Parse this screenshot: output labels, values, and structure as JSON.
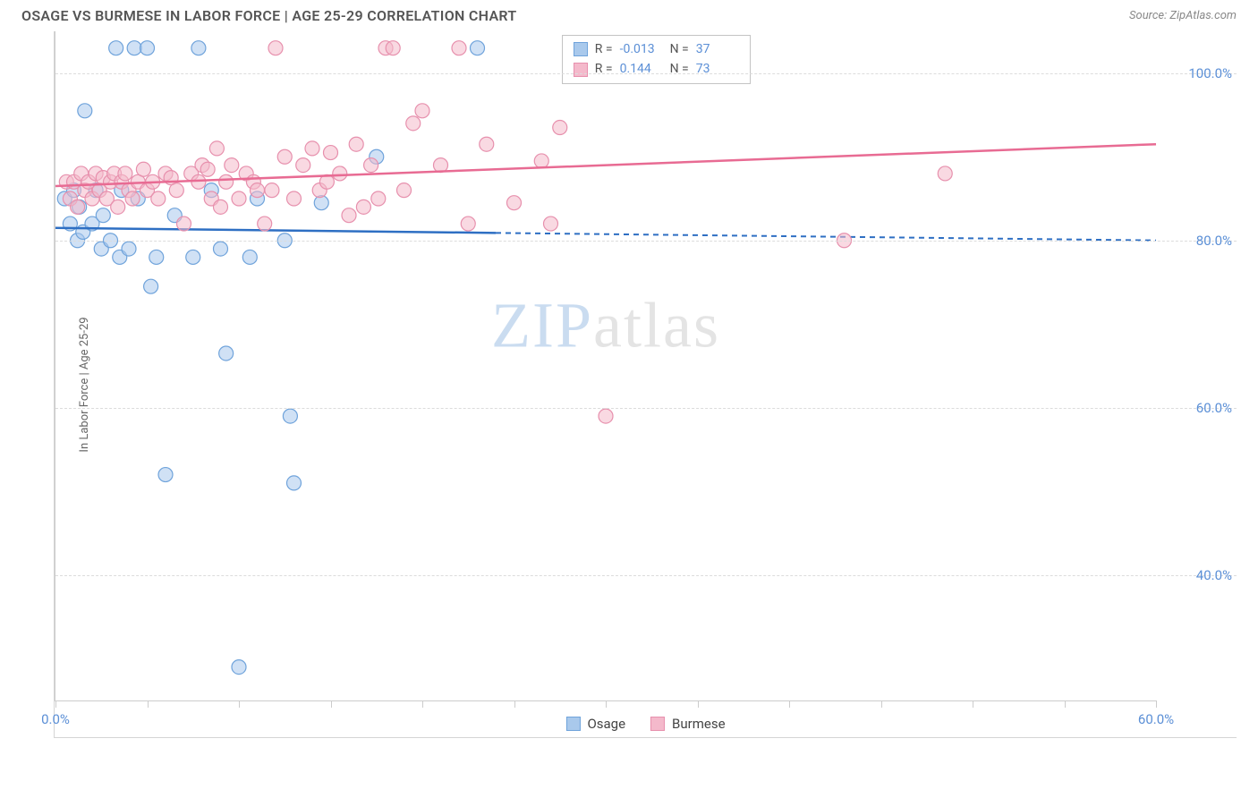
{
  "header": {
    "title": "OSAGE VS BURMESE IN LABOR FORCE | AGE 25-29 CORRELATION CHART",
    "source": "Source: ZipAtlas.com"
  },
  "watermark": {
    "left": "ZIP",
    "right": "atlas"
  },
  "chart": {
    "type": "scatter-with-regression",
    "ylabel": "In Labor Force | Age 25-29",
    "xlim": [
      0,
      60
    ],
    "ylim": [
      25,
      105
    ],
    "xtick_step": 5,
    "xtick_labels_at": [
      0,
      60
    ],
    "xtick_format": "%.1f%%",
    "ytick_values": [
      40,
      60,
      80,
      100
    ],
    "ytick_format": "%.1f%%",
    "background_color": "#ffffff",
    "grid_color": "#dcdcdc",
    "marker_radius": 8,
    "marker_opacity": 0.55,
    "line_width": 2.5,
    "series": [
      {
        "key": "osage",
        "label": "Osage",
        "color_fill": "#a9c9ec",
        "color_stroke": "#6fa3db",
        "color_line": "#2e6fc3",
        "r": "-0.013",
        "n": "37",
        "reg_start": [
          0,
          81.5
        ],
        "reg_end": [
          60,
          80.0
        ],
        "reg_solid_until": 24,
        "points": [
          [
            0.5,
            85
          ],
          [
            0.8,
            82
          ],
          [
            1.0,
            86
          ],
          [
            1.2,
            80
          ],
          [
            1.3,
            84
          ],
          [
            1.5,
            81
          ],
          [
            1.6,
            95.5
          ],
          [
            2.0,
            82
          ],
          [
            2.2,
            86
          ],
          [
            2.5,
            79
          ],
          [
            2.6,
            83
          ],
          [
            3.0,
            80
          ],
          [
            3.3,
            103
          ],
          [
            3.5,
            78
          ],
          [
            3.6,
            86
          ],
          [
            4.0,
            79
          ],
          [
            4.3,
            103
          ],
          [
            4.5,
            85
          ],
          [
            5.0,
            103
          ],
          [
            5.2,
            74.5
          ],
          [
            5.5,
            78
          ],
          [
            6.0,
            52
          ],
          [
            6.5,
            83
          ],
          [
            7.5,
            78
          ],
          [
            7.8,
            103
          ],
          [
            8.5,
            86
          ],
          [
            9.0,
            79
          ],
          [
            9.3,
            66.5
          ],
          [
            10.0,
            29
          ],
          [
            10.6,
            78
          ],
          [
            11.0,
            85
          ],
          [
            12.5,
            80
          ],
          [
            12.8,
            59
          ],
          [
            13.0,
            51
          ],
          [
            14.5,
            84.5
          ],
          [
            17.5,
            90
          ],
          [
            23.0,
            103
          ]
        ]
      },
      {
        "key": "burmese",
        "label": "Burmese",
        "color_fill": "#f4b9cb",
        "color_stroke": "#e790ad",
        "color_line": "#e86b93",
        "r": "0.144",
        "n": "73",
        "reg_start": [
          0,
          86.5
        ],
        "reg_end": [
          60,
          91.5
        ],
        "reg_solid_until": 60,
        "points": [
          [
            0.6,
            87
          ],
          [
            0.8,
            85
          ],
          [
            1.0,
            87
          ],
          [
            1.2,
            84
          ],
          [
            1.4,
            88
          ],
          [
            1.6,
            86
          ],
          [
            1.8,
            87
          ],
          [
            2.0,
            85
          ],
          [
            2.2,
            88
          ],
          [
            2.4,
            86
          ],
          [
            2.6,
            87.5
          ],
          [
            2.8,
            85
          ],
          [
            3.0,
            87
          ],
          [
            3.2,
            88
          ],
          [
            3.4,
            84
          ],
          [
            3.6,
            87
          ],
          [
            3.8,
            88
          ],
          [
            4.0,
            86
          ],
          [
            4.2,
            85
          ],
          [
            4.5,
            87
          ],
          [
            4.8,
            88.5
          ],
          [
            5.0,
            86
          ],
          [
            5.3,
            87
          ],
          [
            5.6,
            85
          ],
          [
            6.0,
            88
          ],
          [
            6.3,
            87.5
          ],
          [
            6.6,
            86
          ],
          [
            7.0,
            82
          ],
          [
            7.4,
            88
          ],
          [
            7.8,
            87
          ],
          [
            8.0,
            89
          ],
          [
            8.3,
            88.5
          ],
          [
            8.5,
            85
          ],
          [
            8.8,
            91
          ],
          [
            9.0,
            84
          ],
          [
            9.3,
            87
          ],
          [
            9.6,
            89
          ],
          [
            10.0,
            85
          ],
          [
            10.4,
            88
          ],
          [
            10.8,
            87
          ],
          [
            11.0,
            86
          ],
          [
            11.4,
            82
          ],
          [
            11.8,
            86
          ],
          [
            12.0,
            103
          ],
          [
            12.5,
            90
          ],
          [
            13.0,
            85
          ],
          [
            13.5,
            89
          ],
          [
            14.0,
            91
          ],
          [
            14.4,
            86
          ],
          [
            14.8,
            87
          ],
          [
            15.0,
            90.5
          ],
          [
            15.5,
            88
          ],
          [
            16.0,
            83
          ],
          [
            16.4,
            91.5
          ],
          [
            16.8,
            84
          ],
          [
            17.2,
            89
          ],
          [
            17.6,
            85
          ],
          [
            18.0,
            103
          ],
          [
            18.4,
            103
          ],
          [
            19.0,
            86
          ],
          [
            19.5,
            94
          ],
          [
            20.0,
            95.5
          ],
          [
            21.0,
            89
          ],
          [
            22.0,
            103
          ],
          [
            22.5,
            82
          ],
          [
            23.5,
            91.5
          ],
          [
            25.0,
            84.5
          ],
          [
            26.5,
            89.5
          ],
          [
            27.0,
            82
          ],
          [
            27.5,
            93.5
          ],
          [
            30.0,
            59
          ],
          [
            43.0,
            80
          ],
          [
            48.5,
            88
          ]
        ]
      }
    ]
  },
  "legend_bottom": [
    {
      "key": "osage",
      "label": "Osage"
    },
    {
      "key": "burmese",
      "label": "Burmese"
    }
  ]
}
